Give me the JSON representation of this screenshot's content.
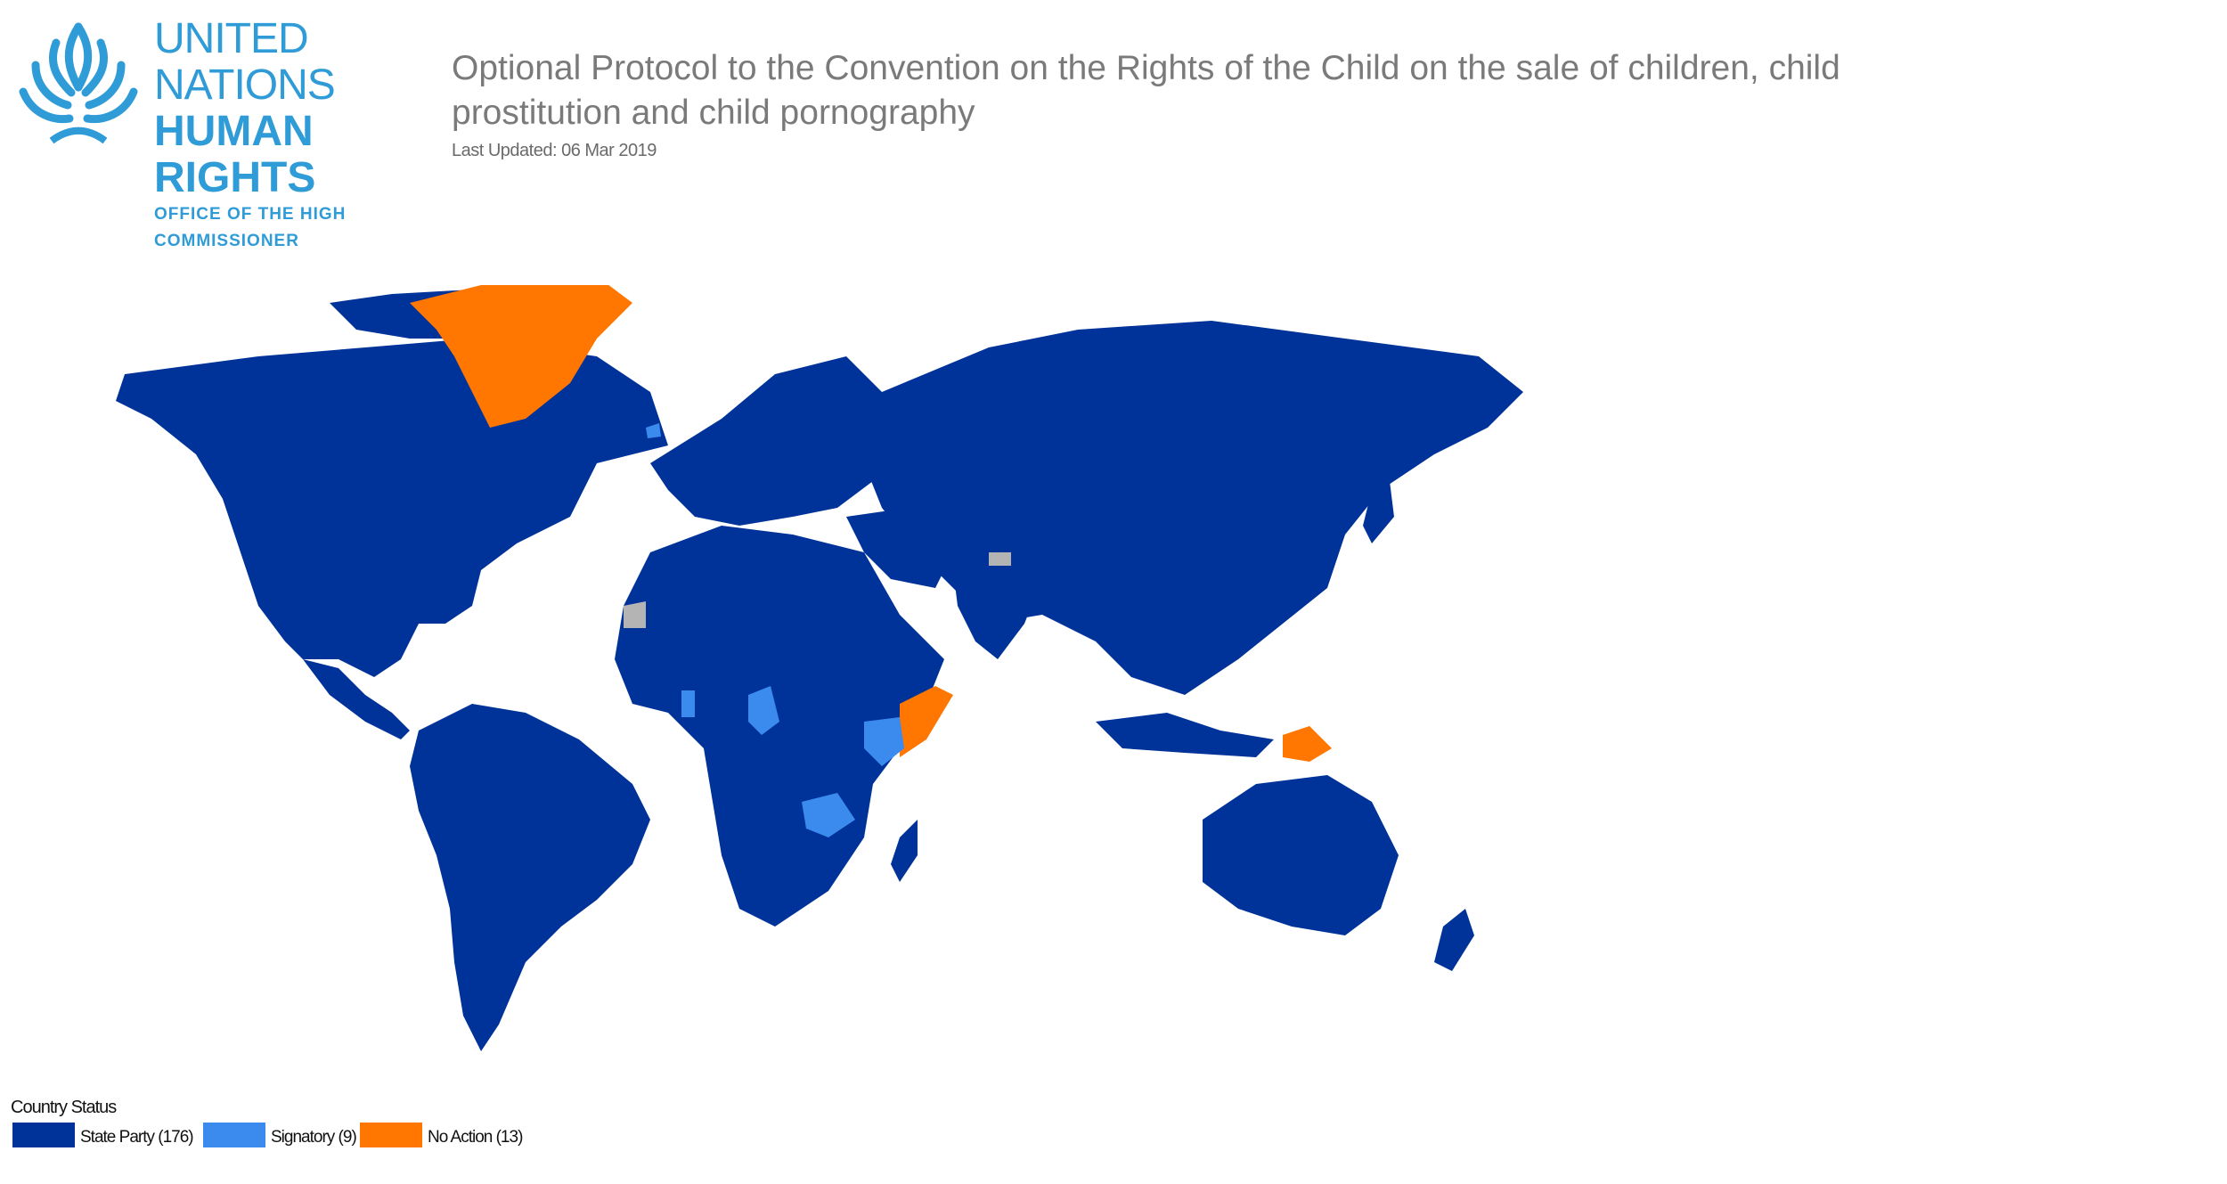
{
  "logo": {
    "line1": "UNITED NATIONS",
    "line2": "HUMAN RIGHTS",
    "line3": "OFFICE OF THE HIGH COMMISSIONER",
    "icon": "un-emblem-icon"
  },
  "title": "Optional Protocol to the Convention on the Rights of the Child on the sale of children, child prostitution and child pornography",
  "last_updated": "Last Updated: 06 Mar 2019",
  "colors": {
    "state_party": "#003399",
    "signatory": "#3b8bef",
    "no_action": "#ff7700",
    "no_data": "#b4b4b4"
  },
  "legend": {
    "title": "Country Status",
    "items": [
      {
        "label": "State Party (176)",
        "color": "#003399"
      },
      {
        "label": "Signatory (9)",
        "color": "#3b8bef"
      },
      {
        "label": "No Action (13)",
        "color": "#ff7700"
      }
    ]
  }
}
